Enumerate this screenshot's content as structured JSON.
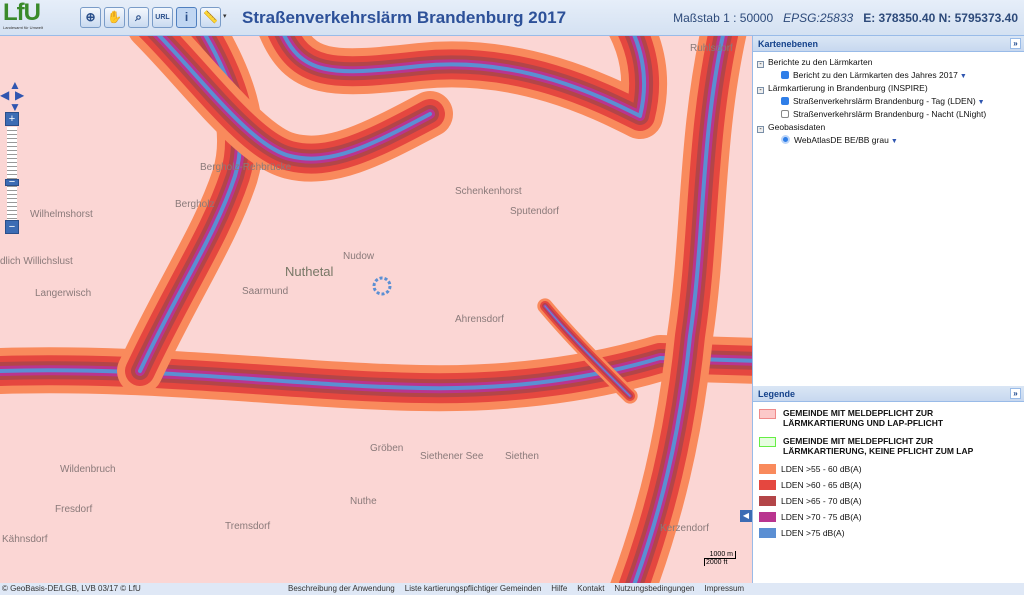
{
  "header": {
    "logo_text": "LfU",
    "logo_subtitle": "Landesamt für Umwelt",
    "tools": [
      {
        "icon": "globe-icon"
      },
      {
        "icon": "pan-hand-icon"
      },
      {
        "icon": "zoom-box-icon"
      },
      {
        "icon": "url-link-icon"
      },
      {
        "icon": "info-icon",
        "active": true
      },
      {
        "icon": "measure-ruler-icon"
      }
    ],
    "title": "Straßenverkehrslärm Brandenburg 2017",
    "scale": "Maßstab 1 : 50000",
    "epsg": "EPSG:25833",
    "coords": "E: 378350.40 N: 5795373.40"
  },
  "map": {
    "places": [
      "Ruhlsdorf",
      "Bergholz-Rehbrücke",
      "Wilhelmshorst",
      "Bergholz",
      "Schenkenhorst",
      "Sputendorf",
      "Nudow",
      "Nuthetal",
      "Saarmund",
      "Langerwisch",
      "Ahrensdorf",
      "Wildenbruch",
      "Fresdorf",
      "Tremsdorf",
      "Kähnsdorf",
      "Gröben",
      "Siethener See",
      "Siethen",
      "Kerzendorf",
      "Nuthe",
      "dlich Willichslust"
    ],
    "scalebar": {
      "metric": "1000 m",
      "imperial": "2000 ft"
    },
    "colors": {
      "background": "#fbd6d4",
      "band55": "#f98a5c",
      "band60": "#e5473f",
      "band65": "#b34548",
      "band70": "#b9358f",
      "band75": "#5b8fd3"
    }
  },
  "layers": {
    "title": "Kartenebenen",
    "groups": [
      {
        "label": "Berichte zu den Lärmkarten",
        "items": [
          {
            "label": "Bericht zu den Lärmkarten des Jahres 2017",
            "checked": true
          }
        ]
      },
      {
        "label": "Lärmkartierung in Brandenburg (INSPIRE)",
        "items": [
          {
            "label": "Straßenverkehrslärm Brandenburg - Tag (LDEN)",
            "checked": true
          },
          {
            "label": "Straßenverkehrslärm Brandenburg - Nacht (LNight)",
            "checked": false
          }
        ]
      },
      {
        "label": "Geobasisdaten",
        "items": [
          {
            "label": "WebAtlasDE BE/BB grau",
            "selected": true
          }
        ]
      }
    ]
  },
  "legend": {
    "title": "Legende",
    "items": [
      {
        "label": "GEMEINDE MIT MELDEPFLICHT ZUR LÄRMKARTIERUNG UND LAP-PFLICHT",
        "color": "#fcc9c9",
        "border": "#f08a8a"
      },
      {
        "label": "GEMEINDE MIT MELDEPFLICHT ZUR LÄRMKARTIERUNG, KEINE PFLICHT ZUM LAP",
        "color": "#e6fde0",
        "border": "#66ee44"
      },
      {
        "label": "LDEN >55 - 60 dB(A)",
        "color": "#f98a5c"
      },
      {
        "label": "LDEN >60 - 65 dB(A)",
        "color": "#e5473f"
      },
      {
        "label": "LDEN >65 - 70 dB(A)",
        "color": "#b34548"
      },
      {
        "label": "LDEN >70 - 75 dB(A)",
        "color": "#b9358f"
      },
      {
        "label": "LDEN >75 dB(A)",
        "color": "#5b8fd3"
      }
    ]
  },
  "footer": {
    "copyright": "© GeoBasis-DE/LGB, LVB 03/17   © LfU",
    "links": [
      "Beschreibung der Anwendung",
      "Liste kartierungspflichtiger Gemeinden",
      "Hilfe",
      "Kontakt",
      "Nutzungsbedingungen",
      "Impressum"
    ]
  }
}
